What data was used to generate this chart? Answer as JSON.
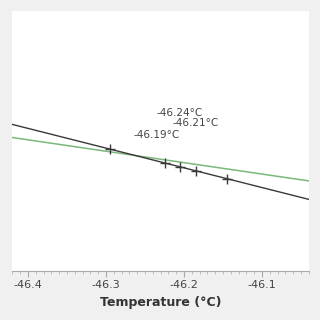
{
  "title": "",
  "xlabel": "Temperature (°C)",
  "xlim": [
    -46.42,
    -46.04
  ],
  "ylim": [
    -0.08,
    0.42
  ],
  "xticks": [
    -46.4,
    -46.3,
    -46.2,
    -46.1
  ],
  "xticklabels": [
    "-46.4",
    "-46.3",
    "-46.2",
    "-46.1"
  ],
  "green_line_color": "#7ab87a",
  "black_line_color": "#3a3a3a",
  "annotation_color": "#444444",
  "tick_positions": [
    -46.295,
    -46.225,
    -46.205,
    -46.185,
    -46.145
  ],
  "tick_marker_size": 7,
  "background_color": "#ffffff",
  "figure_facecolor": "#f0f0f0",
  "ann1_label": "-46.24°C",
  "ann2_label": "-46.21°C",
  "ann3_label": "-46.19°C"
}
